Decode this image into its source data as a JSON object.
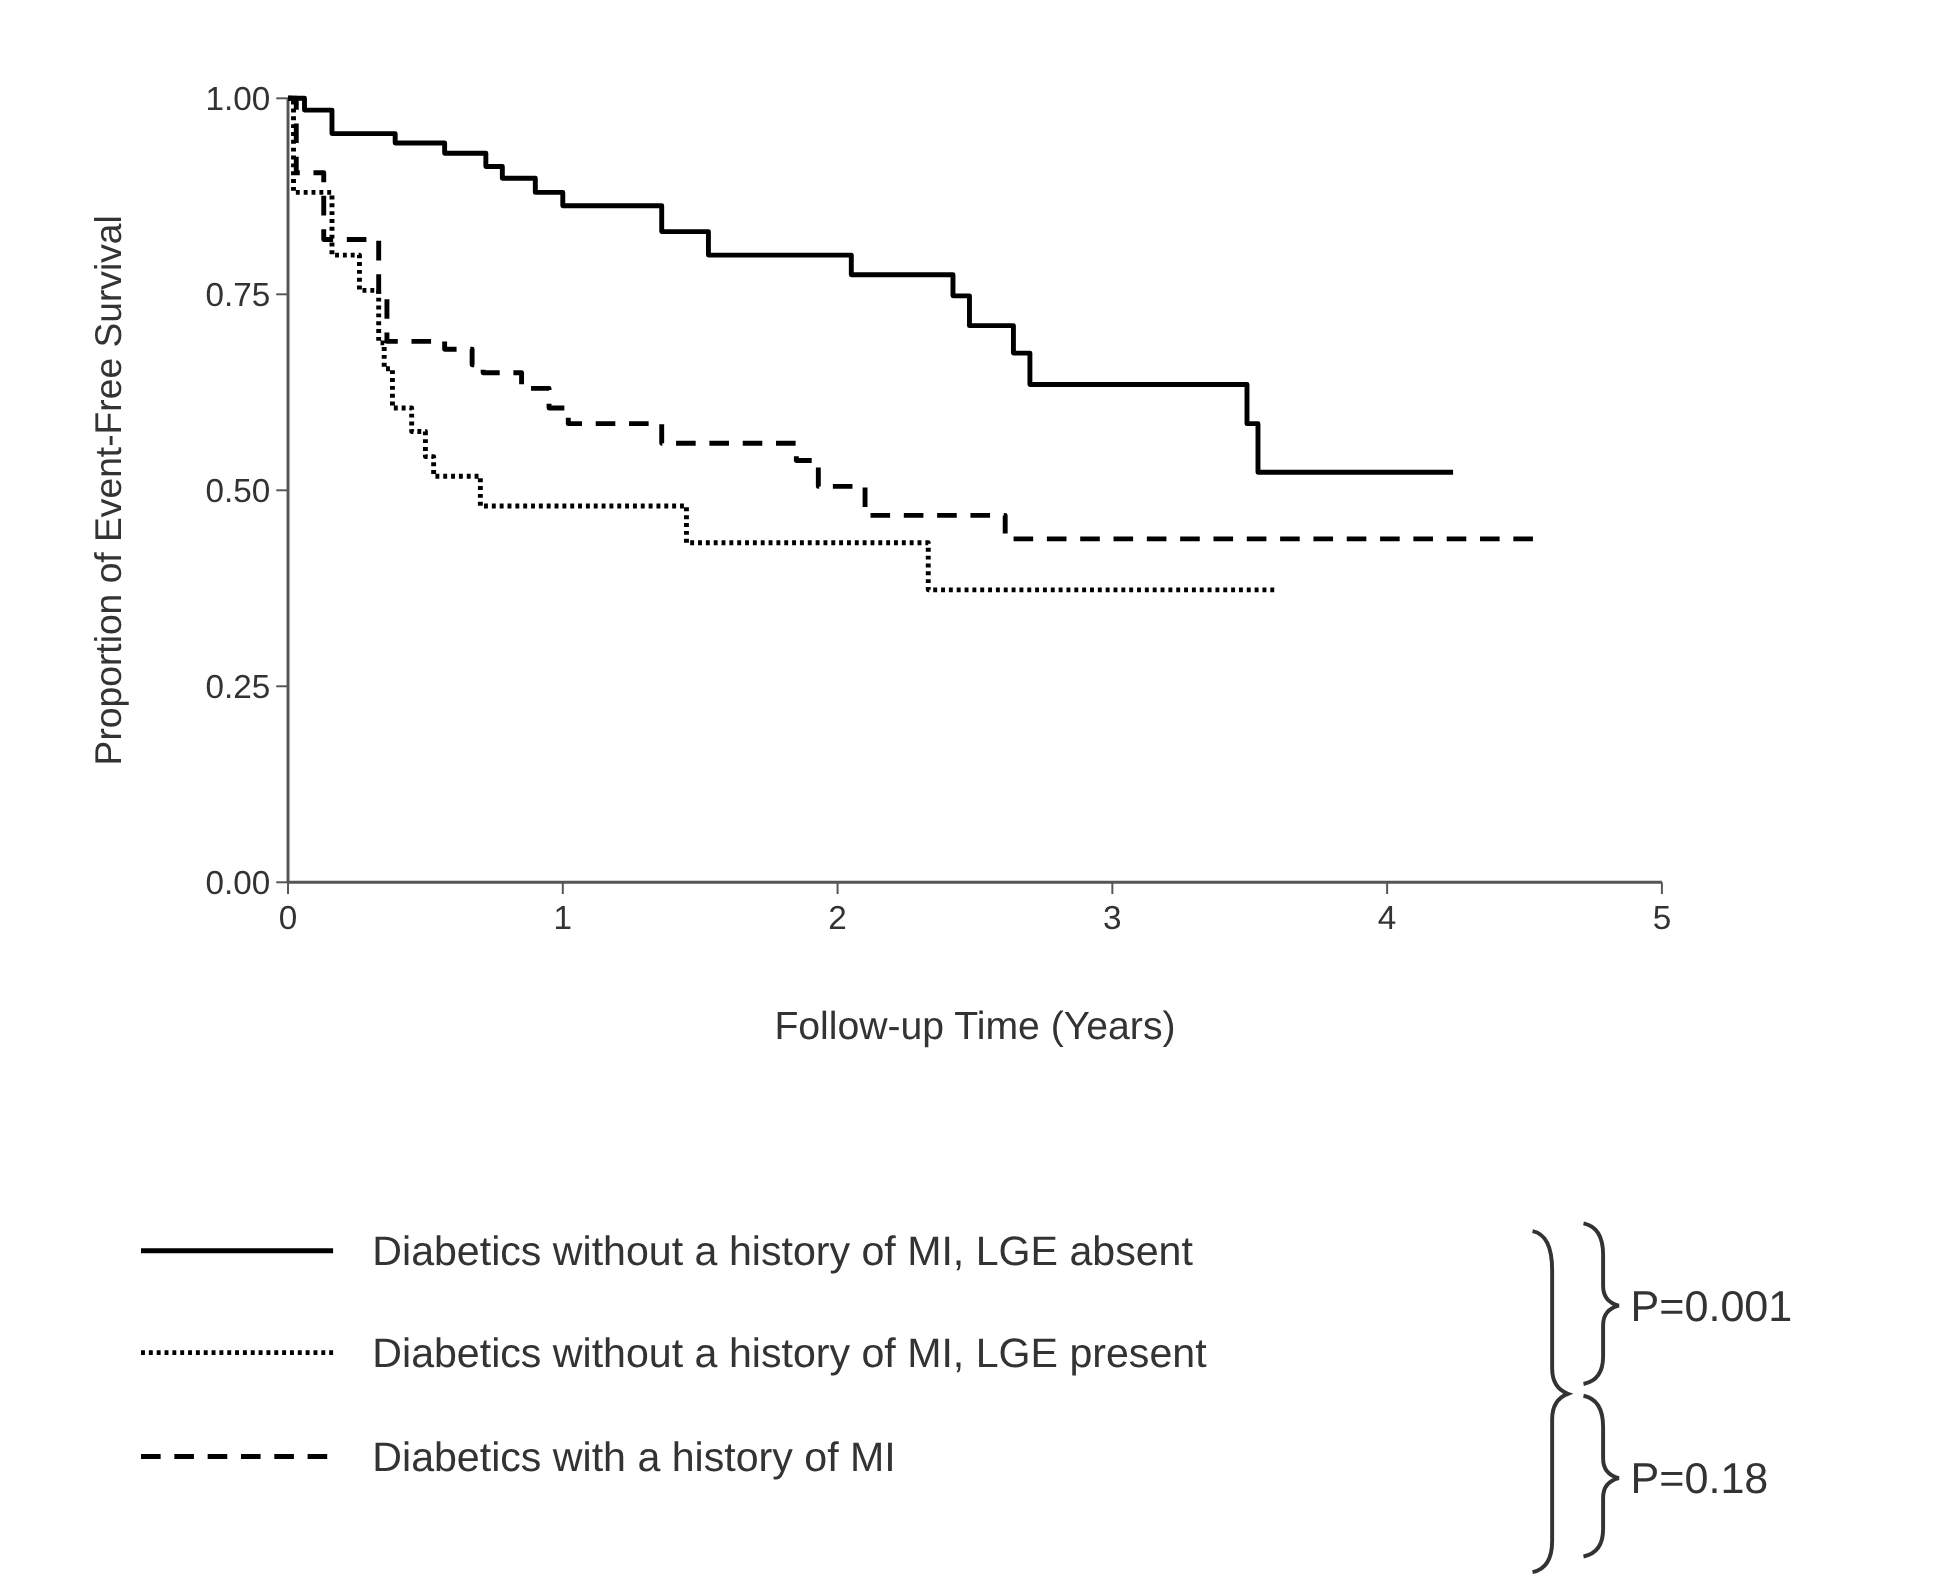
{
  "chart_data": {
    "type": "step",
    "xlabel": "Follow-up Time (Years)",
    "ylabel": "Proportion of Event-Free Survival",
    "xlim": [
      0,
      5
    ],
    "xticks": [
      0,
      1,
      2,
      3,
      4,
      5
    ],
    "ylim": [
      0,
      1
    ],
    "yticks": [
      {
        "value": 0,
        "label": "0.00"
      },
      {
        "value": 0.25,
        "label": "0.25"
      },
      {
        "value": 0.5,
        "label": "0.50"
      },
      {
        "value": 0.75,
        "label": "0.75"
      },
      {
        "value": 1,
        "label": "1.00"
      }
    ],
    "grid": false,
    "legend": "bottom",
    "series": [
      {
        "name": "Diabetics without a history of MI, LGE absent",
        "color": "#000000",
        "line_style": "solid",
        "x": [
          0,
          0.06,
          0.16,
          0.39,
          0.57,
          0.72,
          0.78,
          0.9,
          1.0,
          1.36,
          1.53,
          2.05,
          2.42,
          2.48,
          2.64,
          2.7,
          3.49,
          3.53,
          4.24
        ],
        "values": [
          1.0,
          0.985,
          0.955,
          0.943,
          0.93,
          0.913,
          0.898,
          0.88,
          0.863,
          0.83,
          0.8,
          0.775,
          0.748,
          0.71,
          0.675,
          0.635,
          0.585,
          0.523,
          0.523
        ]
      },
      {
        "name": "Diabetics without a history of MI, LGE present",
        "color": "#000000",
        "line_style": "dotted",
        "x": [
          0,
          0.02,
          0.16,
          0.26,
          0.33,
          0.35,
          0.38,
          0.45,
          0.5,
          0.53,
          0.7,
          1.45,
          2.33,
          3.59
        ],
        "values": [
          1.0,
          0.88,
          0.8,
          0.755,
          0.688,
          0.655,
          0.605,
          0.575,
          0.543,
          0.518,
          0.48,
          0.433,
          0.373,
          0.373
        ]
      },
      {
        "name": "Diabetics with a history of MI",
        "color": "#000000",
        "line_style": "dashed",
        "x": [
          0,
          0.03,
          0.13,
          0.33,
          0.36,
          0.57,
          0.67,
          0.71,
          0.85,
          0.95,
          1.02,
          1.36,
          1.85,
          1.93,
          2.1,
          2.61,
          4.55
        ],
        "values": [
          1.0,
          0.905,
          0.82,
          0.748,
          0.69,
          0.68,
          0.66,
          0.65,
          0.63,
          0.605,
          0.585,
          0.56,
          0.538,
          0.505,
          0.468,
          0.438,
          0.438
        ]
      }
    ],
    "annotations": [
      "P=0.001",
      "P=0.18"
    ]
  }
}
